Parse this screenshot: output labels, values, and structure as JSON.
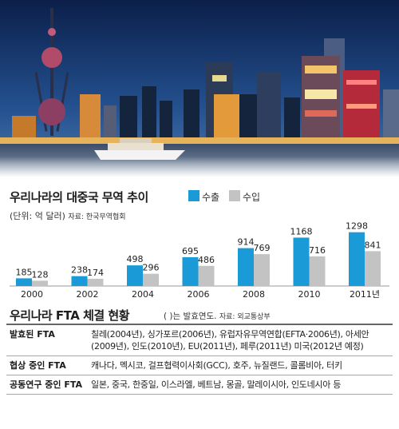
{
  "colors": {
    "export": "#1a9ad6",
    "import": "#c3c3c3",
    "sky_top": "#0b1f4a",
    "sky_bottom": "#2d5d9b",
    "water": "#3a4c68"
  },
  "chart_data": {
    "type": "bar",
    "title": "우리나라의 대중국 무역 추이",
    "unit": "(단위: 억 달러)",
    "source": "자료: 한국무역협회",
    "categories": [
      "2000",
      "2002",
      "2004",
      "2006",
      "2008",
      "2010",
      "2011년"
    ],
    "series": [
      {
        "name": "수출",
        "values": [
          185,
          238,
          498,
          695,
          914,
          1168,
          1298
        ]
      },
      {
        "name": "수입",
        "values": [
          128,
          174,
          296,
          486,
          769,
          716,
          841
        ]
      }
    ],
    "ylim": [
      0,
      1350
    ],
    "grid": false,
    "legend": "top-right"
  },
  "fta": {
    "title": "우리나라 FTA 체결 현황",
    "note": "( )는 발효연도.",
    "source": "자료: 외교통상부",
    "rows": [
      {
        "label": "발효된 FTA",
        "value": "칠레(2004년), 싱가포르(2006년), 유럽자유무역연합(EFTA·2006년), 아세안(2009년), 인도(2010년), EU(2011년), 페루(2011년) 미국(2012년 예정)"
      },
      {
        "label": "협상 중인 FTA",
        "value": "캐나다, 멕시코, 걸프협력이사회(GCC), 호주, 뉴질랜드, 콜롬비아, 터키"
      },
      {
        "label": "공동연구 중인 FTA",
        "value": "일본, 중국, 한중일, 이스라엘, 베트남, 몽골, 말레이시아, 인도네시아 등"
      }
    ]
  }
}
